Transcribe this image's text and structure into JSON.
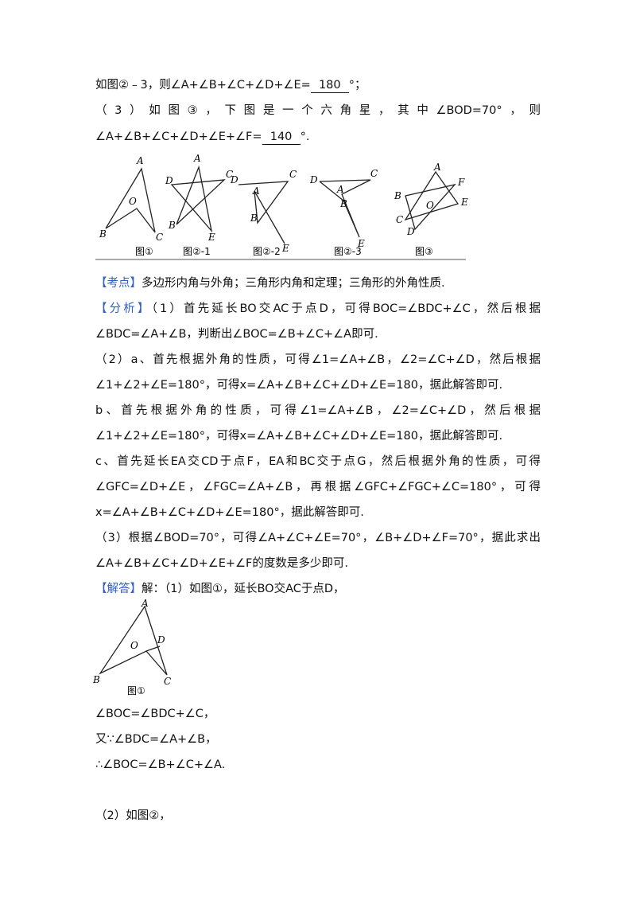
{
  "answers": {
    "line1": {
      "text": "如图②﹣3，则∠A+∠B+∠C+∠D+∠E=",
      "blank": "180",
      "end": "°；"
    },
    "line2": "（3）如图③，下图是一个六角星，其中∠BOD=70°，则",
    "line3": {
      "text": "∠A+∠B+∠C+∠D+∠E+∠F=",
      "blank": "140",
      "end": "°."
    }
  },
  "figure_row": {
    "captions": [
      "图①",
      "图②-1",
      "图②-2",
      "图②-3",
      "图③"
    ],
    "points": [
      [
        "A",
        "O",
        "B",
        "C"
      ],
      [
        "D",
        "A",
        "C",
        "B",
        "E"
      ],
      [
        "D",
        "C",
        "A",
        "B",
        "E"
      ],
      [
        "D",
        "C",
        "A",
        "B",
        "E"
      ],
      [
        "A",
        "F",
        "B",
        "E",
        "O",
        "C",
        "D"
      ]
    ]
  },
  "kaodian": {
    "tag": "【考点】",
    "text": "多边形内角与外角；三角形内角和定理；三角形的外角性质."
  },
  "fenxi": {
    "tag": "【分析】",
    "lines": [
      "（1）首先延长BO交AC于点D，可得BOC=∠BDC+∠C，然后根据",
      "∠BDC=∠A+∠B，判断出∠BOC=∠B+∠C+∠A即可.",
      "（2）a、首先根据外角的性质，可得∠1=∠A+∠B，∠2=∠C+∠D，然后根据",
      "∠1+∠2+∠E=180°，可得x=∠A+∠B+∠C+∠D+∠E=180，据此解答即可.",
      "b、首先根据外角的性质，可得∠1=∠A+∠B，∠2=∠C+∠D，然后根据",
      "∠1+∠2+∠E=180°，可得x=∠A+∠B+∠C+∠D+∠E=180，据此解答即可.",
      "c、首先延长EA交CD于点F，EA和BC交于点G，然后根据外角的性质，可得",
      "∠GFC=∠D+∠E，∠FGC=∠A+∠B，再根据∠GFC+∠FGC+∠C=180°，可得",
      "x=∠A+∠B+∠C+∠D+∠E=180°，据此解答即可.",
      "（3）根据∠BOD=70°，可得∠A+∠C+∠E=70°，∠B+∠D+∠F=70°，据此求出",
      "∠A+∠B+∠C+∠D+∠E+∠F的度数是多少即可."
    ]
  },
  "jieda": {
    "tag": "【解答】",
    "intro": "解：（1）如图①，延长BO交AC于点D，",
    "figure": {
      "points": [
        "A",
        "O",
        "D",
        "B",
        "C"
      ],
      "caption": "图①"
    },
    "lines": [
      "∠BOC=∠BDC+∠C，",
      "又∵∠BDC=∠A+∠B，",
      "∴∠BOC=∠B+∠C+∠A."
    ],
    "part2": "（2）如图②，"
  }
}
